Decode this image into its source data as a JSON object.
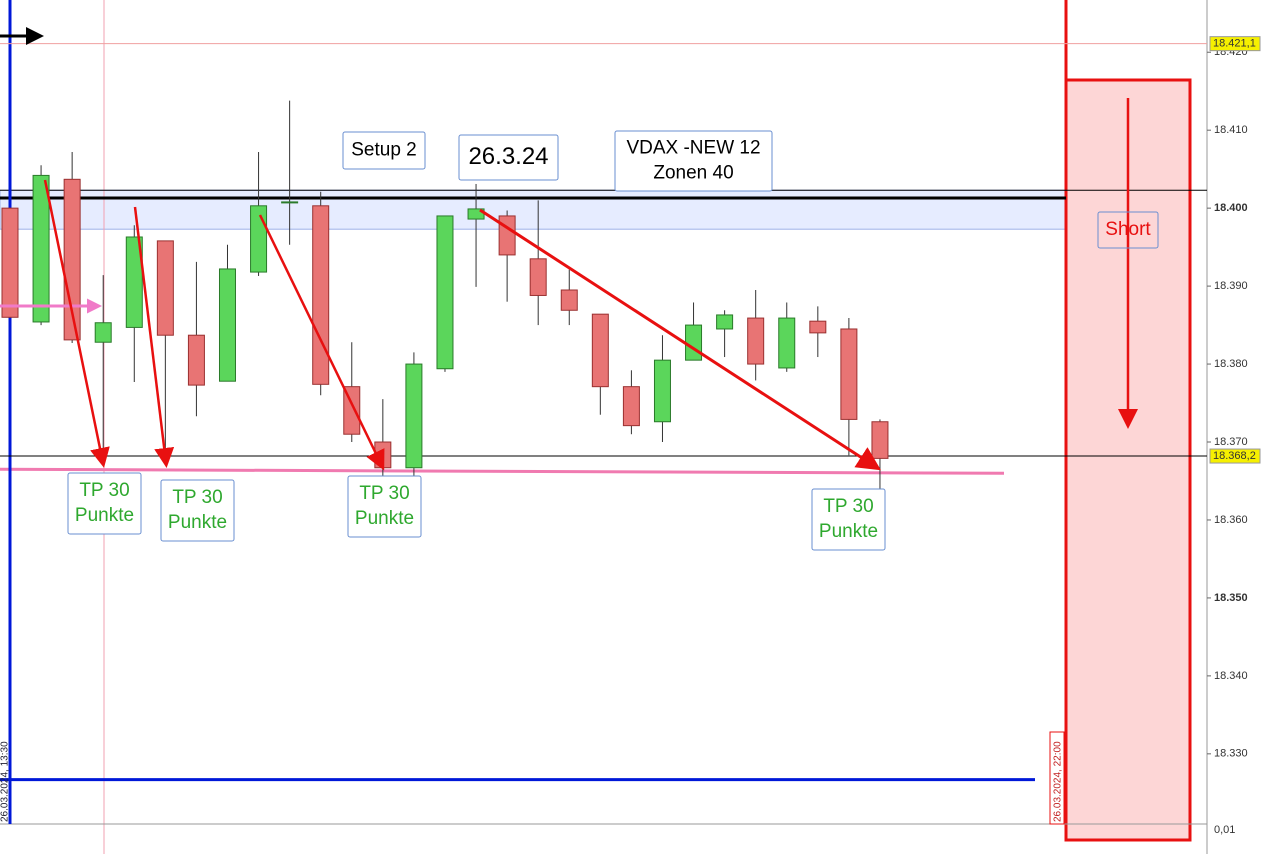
{
  "chart_data": {
    "type": "candlestick",
    "open": [
      18400.0,
      18385.4,
      18403.7,
      18382.8,
      18384.7,
      18395.8,
      18383.7,
      18377.8,
      18391.8,
      18400.8,
      18400.3,
      18377.1,
      18370.0,
      18366.7,
      18379.4,
      18398.6,
      18399.0,
      18393.5,
      18389.5,
      18386.4,
      18377.1,
      18372.6,
      18380.5,
      18384.5,
      18385.9,
      18379.5,
      18385.5,
      18384.5,
      18372.6
    ],
    "high": [
      18400.0,
      18405.5,
      18407.2,
      18391.4,
      18397.8,
      18395.8,
      18393.1,
      18395.3,
      18407.2,
      18413.8,
      18402.1,
      18382.8,
      18375.5,
      18381.5,
      18399.0,
      18403.1,
      18399.7,
      18401.0,
      18392.1,
      18386.4,
      18379.2,
      18383.7,
      18387.9,
      18386.9,
      18389.5,
      18387.9,
      18387.4,
      18385.9,
      18372.9
    ],
    "low": [
      18386.0,
      18385.0,
      18382.7,
      18367.7,
      18377.7,
      18368.3,
      18373.3,
      18377.8,
      18391.3,
      18395.3,
      18376.0,
      18370.0,
      18357.8,
      18362.9,
      18379.0,
      18389.9,
      18388.0,
      18385.0,
      18385.0,
      18373.5,
      18371.0,
      18370.0,
      18380.5,
      18380.9,
      18377.9,
      18379.0,
      18380.9,
      18368.3,
      18363.8
    ],
    "close": [
      18386.0,
      18404.2,
      18383.1,
      18385.3,
      18396.3,
      18383.7,
      18377.3,
      18392.2,
      18400.3,
      18400.8,
      18377.4,
      18371.0,
      18366.7,
      18380.0,
      18399.0,
      18399.9,
      18394.0,
      18388.8,
      18386.9,
      18377.1,
      18372.1,
      18380.5,
      18385.0,
      18386.3,
      18380.0,
      18385.9,
      18384.0,
      18372.9,
      18367.9
    ],
    "up_color": "#5bd65b",
    "down_color": "#e87474",
    "ylim": [
      18321,
      18426.7
    ],
    "yticks": [
      {
        "value": 18420,
        "label": "18.420"
      },
      {
        "value": 18410,
        "label": "18.410"
      },
      {
        "value": 18400,
        "label": "18.400"
      },
      {
        "value": 18390,
        "label": "18.390"
      },
      {
        "value": 18380,
        "label": "18.380"
      },
      {
        "value": 18370,
        "label": "18.370"
      },
      {
        "value": 18360,
        "label": "18.360"
      },
      {
        "value": 18350,
        "label": "18.350"
      },
      {
        "value": 18340,
        "label": "18.340"
      },
      {
        "value": 18330,
        "label": "18.330"
      }
    ],
    "price_tags": [
      {
        "value": 18421.1,
        "label": "18.421,1"
      },
      {
        "value": 18368.2,
        "label": "18.368,2"
      }
    ],
    "zone": [
      18397.3,
      18402.3
    ],
    "resistance": 18401.3,
    "support": 18366.5,
    "lower_line": 18326.7,
    "start_label": "26.03.2024, 13:30",
    "end_label": "26.03.2024, 22:00",
    "lower_pane_label": "0,01",
    "annotations": [
      {
        "lines": [
          "Setup 2"
        ]
      },
      {
        "lines": [
          "26.3.24"
        ]
      },
      {
        "lines": [
          "VDAX -NEW 12",
          "Zonen 40"
        ]
      },
      {
        "lines": [
          "TP 30",
          "Punkte"
        ]
      },
      {
        "lines": [
          "TP 30",
          "Punkte"
        ]
      },
      {
        "lines": [
          "TP 30",
          "Punkte"
        ]
      },
      {
        "lines": [
          "TP 30",
          "Punkte"
        ]
      },
      {
        "lines": [
          "Short"
        ]
      }
    ]
  }
}
